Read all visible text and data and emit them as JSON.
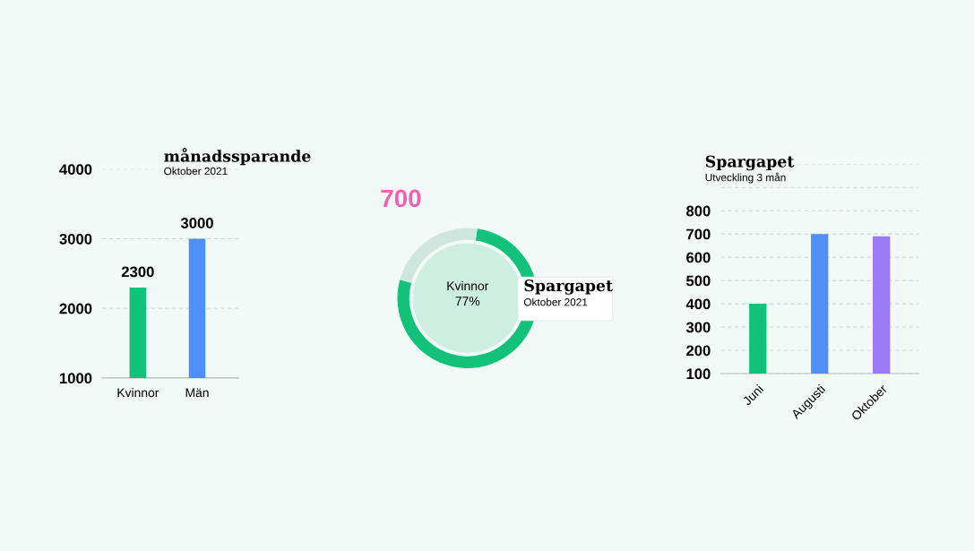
{
  "chart_data": [
    {
      "type": "bar",
      "title": "månadssparande",
      "subtitle": "Oktober 2021",
      "categories": [
        "Kvinnor",
        "Män"
      ],
      "values": [
        2300,
        3000
      ],
      "colors": [
        "#12c27b",
        "#4f8ff7"
      ],
      "ylim": [
        1000,
        4000
      ],
      "yticks": [
        1000,
        2000,
        3000,
        4000
      ],
      "grid": "y",
      "data_labels": true
    },
    {
      "type": "donut",
      "title": "Spargapet",
      "subtitle": "Oktober 2021",
      "categories": [
        "Kvinnor",
        null
      ],
      "values": [
        77,
        23
      ],
      "colors": [
        "#12c27b",
        "#cfe6df"
      ],
      "value_labels": [
        "77%",
        null
      ],
      "annotations": [
        "700"
      ]
    },
    {
      "type": "bar",
      "title": "Spargapet",
      "subtitle": "Utveckling 3 mån",
      "categories": [
        "Juni",
        "Augusti",
        "Oktober"
      ],
      "values": [
        400,
        700,
        690
      ],
      "colors": [
        "#12c27b",
        "#4f8ff7",
        "#9b7bf7"
      ],
      "ylim": [
        100,
        1000
      ],
      "yticks": [
        100,
        200,
        300,
        400,
        500,
        600,
        700,
        800,
        {
          "value": 900,
          "label": null
        },
        {
          "value": 1000,
          "label": null
        }
      ],
      "grid": "y"
    }
  ]
}
